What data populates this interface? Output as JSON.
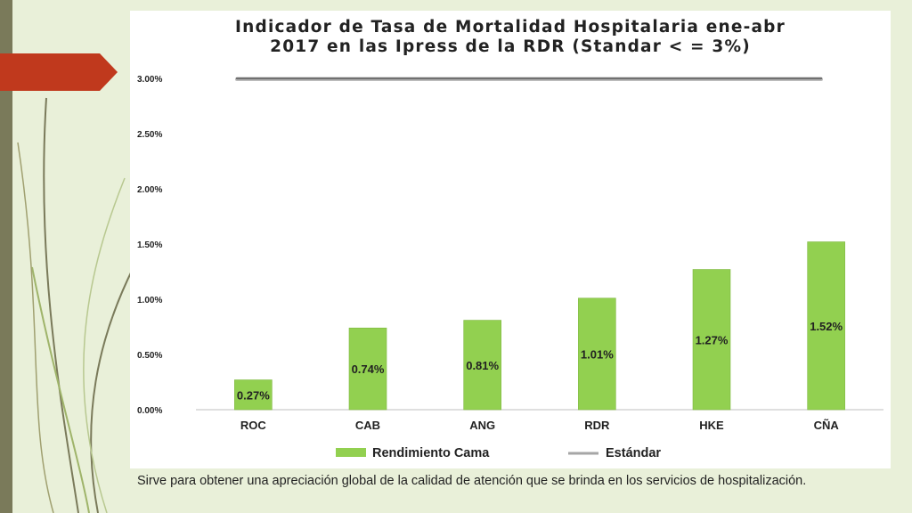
{
  "slide": {
    "caption": "Sirve para obtener una apreciación global de la calidad de atención que se brinda en los servicios de hospitalización.",
    "accent_color": "#c0391d"
  },
  "chart_data": {
    "type": "bar",
    "title_line1": "Indicador de Tasa de Mortalidad Hospitalaria ene-abr",
    "title_line2": "2017 en las Ipress de la RDR (Standar < = 3%)",
    "categories": [
      "ROC",
      "CAB",
      "ANG",
      "RDR",
      "HKE",
      "CÑA"
    ],
    "series": [
      {
        "name": "Rendimiento Cama",
        "values": [
          0.27,
          0.74,
          0.81,
          1.01,
          1.27,
          1.52
        ],
        "labels": [
          "0.27%",
          "0.74%",
          "0.81%",
          "1.01%",
          "1.27%",
          "1.52%"
        ],
        "color": "#92d050"
      }
    ],
    "reference_line": {
      "name": "Estándar",
      "value": 3.0,
      "color": "#8c8c8c"
    },
    "ylim": [
      0,
      3
    ],
    "yticks": [
      0,
      0.5,
      1,
      1.5,
      2,
      2.5,
      3
    ],
    "ytick_labels": [
      "0.00%",
      "0.50%",
      "1.00%",
      "1.50%",
      "2.00%",
      "2.50%",
      "3.00%"
    ],
    "grid": false,
    "legend_position": "bottom"
  }
}
